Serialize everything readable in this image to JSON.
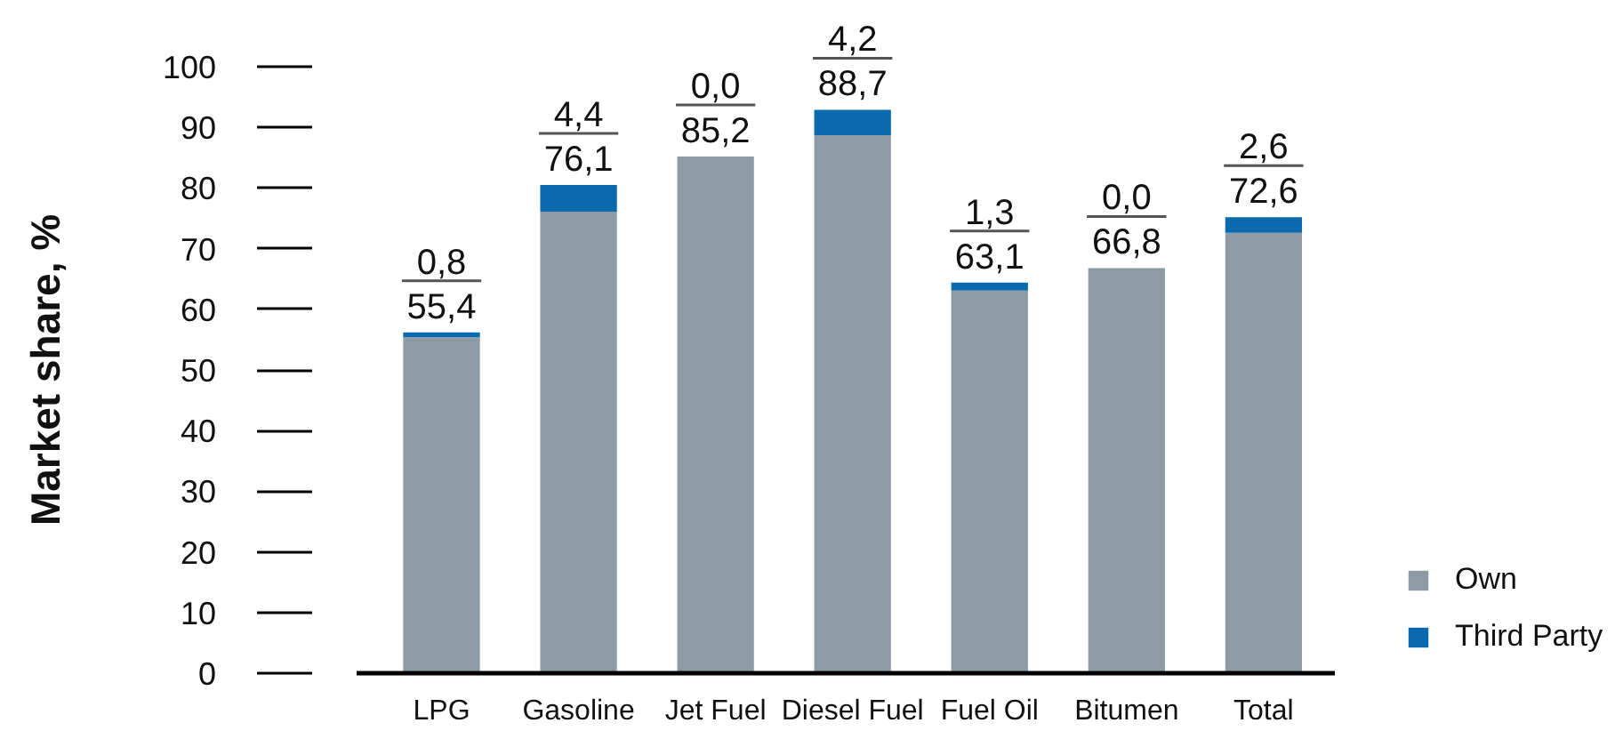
{
  "chart_data": {
    "type": "bar",
    "ylabel": "Market share, %",
    "stacked": true,
    "categories": [
      "LPG",
      "Gasoline",
      "Jet Fuel",
      "Diesel Fuel",
      "Fuel Oil",
      "Bitumen",
      "Total"
    ],
    "series": [
      {
        "name": "Own",
        "color": "#8d9ca4",
        "values": [
          55.4,
          76.1,
          85.2,
          88.7,
          63.1,
          66.8,
          72.6
        ],
        "value_labels": [
          "55,4",
          "76,1",
          "85,2",
          "88,7",
          "63,1",
          "66,8",
          "72,6"
        ]
      },
      {
        "name": "Third Party",
        "color": "#0a6aad",
        "values": [
          0.8,
          4.4,
          0.0,
          4.2,
          1.3,
          0.0,
          2.6
        ],
        "value_labels": [
          "0,8",
          "4,4",
          "0,0",
          "4,2",
          "1,3",
          "0,0",
          "2,6"
        ]
      }
    ],
    "ylim": [
      0,
      100
    ],
    "yticks": [
      0,
      10,
      20,
      30,
      40,
      50,
      60,
      70,
      80,
      90,
      100
    ],
    "legend": "bottom right"
  }
}
